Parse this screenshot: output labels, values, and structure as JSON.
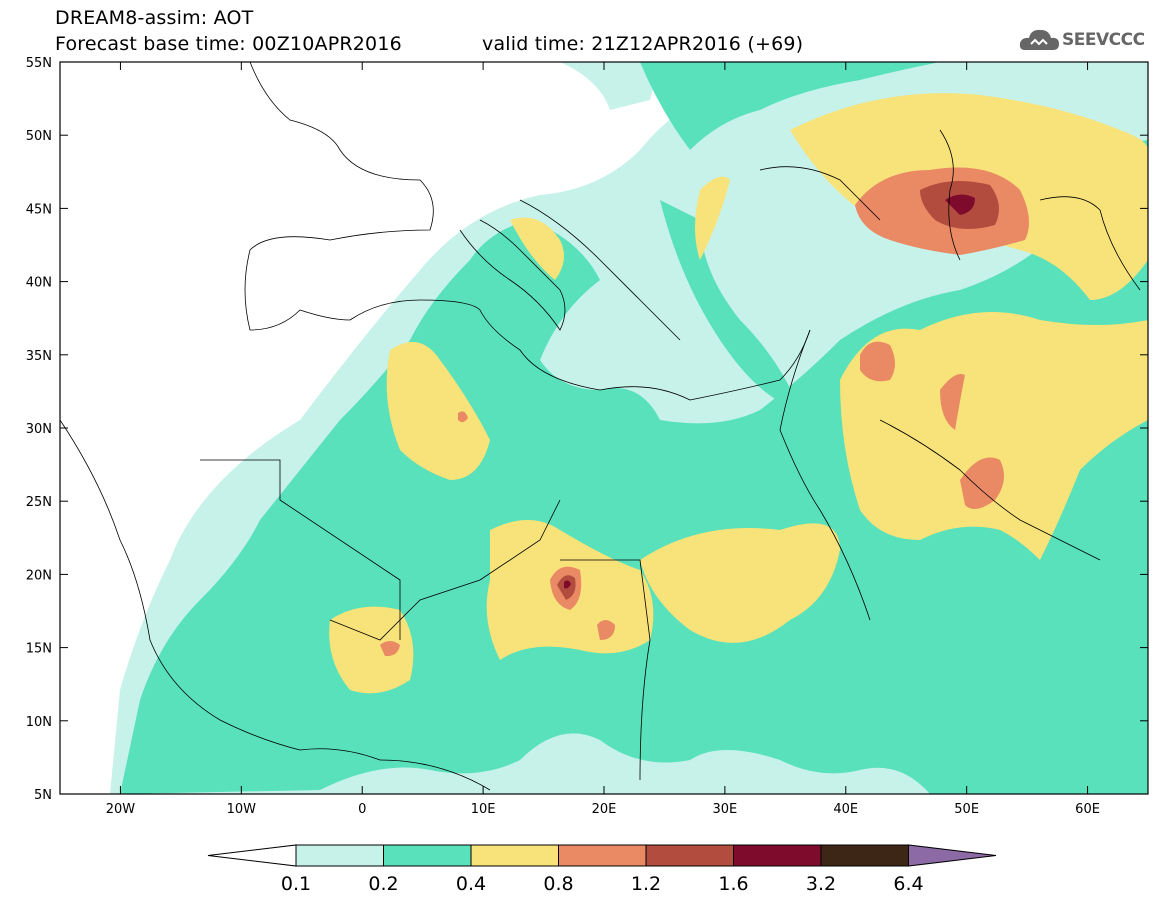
{
  "header": {
    "title_line1": "DREAM8-assim: AOT",
    "base_time": "Forecast base time: 00Z10APR2016",
    "valid_time": "valid time: 21Z12APR2016 (+69)",
    "logo_text": "SEEVCCC"
  },
  "map": {
    "lat_labels": [
      "55N",
      "50N",
      "45N",
      "40N",
      "35N",
      "30N",
      "25N",
      "20N",
      "15N",
      "10N",
      "5N"
    ],
    "lon_labels": [
      "20W",
      "10W",
      "0",
      "10E",
      "20E",
      "30E",
      "40E",
      "50E",
      "60E"
    ],
    "lon_range": [
      -25,
      65
    ],
    "lat_range": [
      5,
      55
    ]
  },
  "colorbar": {
    "thresholds": [
      "0.1",
      "0.2",
      "0.4",
      "0.8",
      "1.2",
      "1.6",
      "3.2",
      "6.4"
    ],
    "colors": [
      "#ffffff",
      "#c6f2ea",
      "#58e1ba",
      "#f8e27a",
      "#e98a64",
      "#b24c3e",
      "#7e0b2c",
      "#3d2616",
      "#8c6aa6"
    ]
  }
}
